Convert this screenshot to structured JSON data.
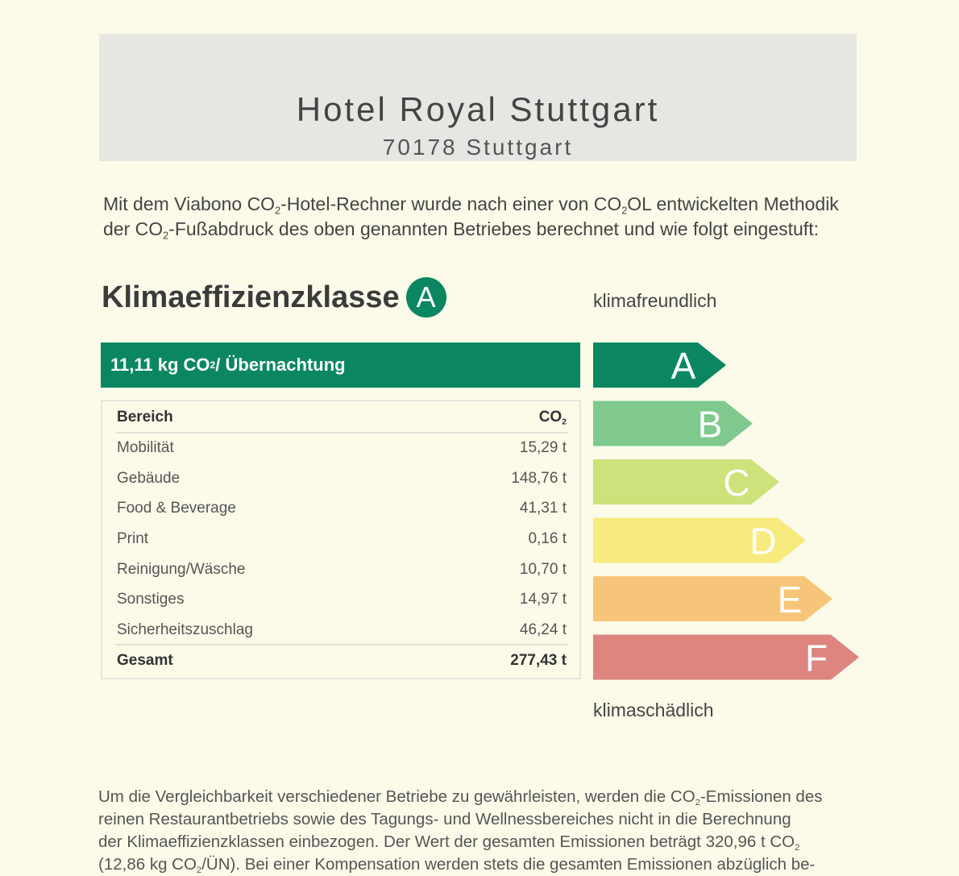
{
  "header": {
    "hotel_name": "Hotel Royal Stuttgart",
    "city": "70178 Stuttgart"
  },
  "intro": {
    "p1": "Mit dem Viabono CO",
    "p2": "-Hotel-Rechner wurde nach einer von CO",
    "p3": "OL entwickelten Methodik der CO",
    "p4": "-Fußabdruck des oben genannten Betriebes berechnet und wie folgt eingestuft:",
    "sub": "2"
  },
  "klasse": {
    "title": "Klimaeffizienzklasse",
    "badge": "A",
    "color": "#0a8761"
  },
  "scale": {
    "top_label": "klimafreundlich",
    "bottom_label": "klimaschädlich",
    "classes": [
      {
        "letter": "A",
        "color": "#0a8761"
      },
      {
        "letter": "B",
        "color": "#7fc98e"
      },
      {
        "letter": "C",
        "color": "#cce27a"
      },
      {
        "letter": "D",
        "color": "#f7ea7e"
      },
      {
        "letter": "E",
        "color": "#f7c57a"
      },
      {
        "letter": "F",
        "color": "#de8580"
      }
    ]
  },
  "summary": {
    "prefix": "11,11 kg CO",
    "sub": "2",
    "suffix": " / Übernachtung"
  },
  "table": {
    "header_bereich": "Bereich",
    "header_co2": "CO",
    "header_sub": "2",
    "rows": [
      {
        "label": "Mobilität",
        "value": "15,29 t"
      },
      {
        "label": "Gebäude",
        "value": "148,76 t"
      },
      {
        "label": "Food & Beverage",
        "value": "41,31 t"
      },
      {
        "label": "Print",
        "value": "0,16 t"
      },
      {
        "label": "Reinigung/Wäsche",
        "value": "10,70 t"
      },
      {
        "label": "Sonstiges",
        "value": "14,97 t"
      },
      {
        "label": "Sicherheitszuschlag",
        "value": "46,24 t"
      }
    ],
    "total_label": "Gesamt",
    "total_value": "277,43 t"
  },
  "footer": {
    "line1a": "Um die Vergleichbarkeit verschiedener Betriebe zu gewährleisten, werden die CO",
    "line1b": "-Emissionen des",
    "line2": "reinen Restaurantbetriebs sowie des Tagungs- und Wellnessbereiches nicht in die Berechnung",
    "line3a": "der Klimaeffizienzklassen einbezogen. Der Wert der gesamten Emissionen beträgt 320,96 t CO",
    "line4a": "(12,86 kg CO",
    "line4b": "/ÜN). Bei einer Kompensation werden stets die gesamten Emissionen abzüglich be-",
    "sub": "2"
  }
}
